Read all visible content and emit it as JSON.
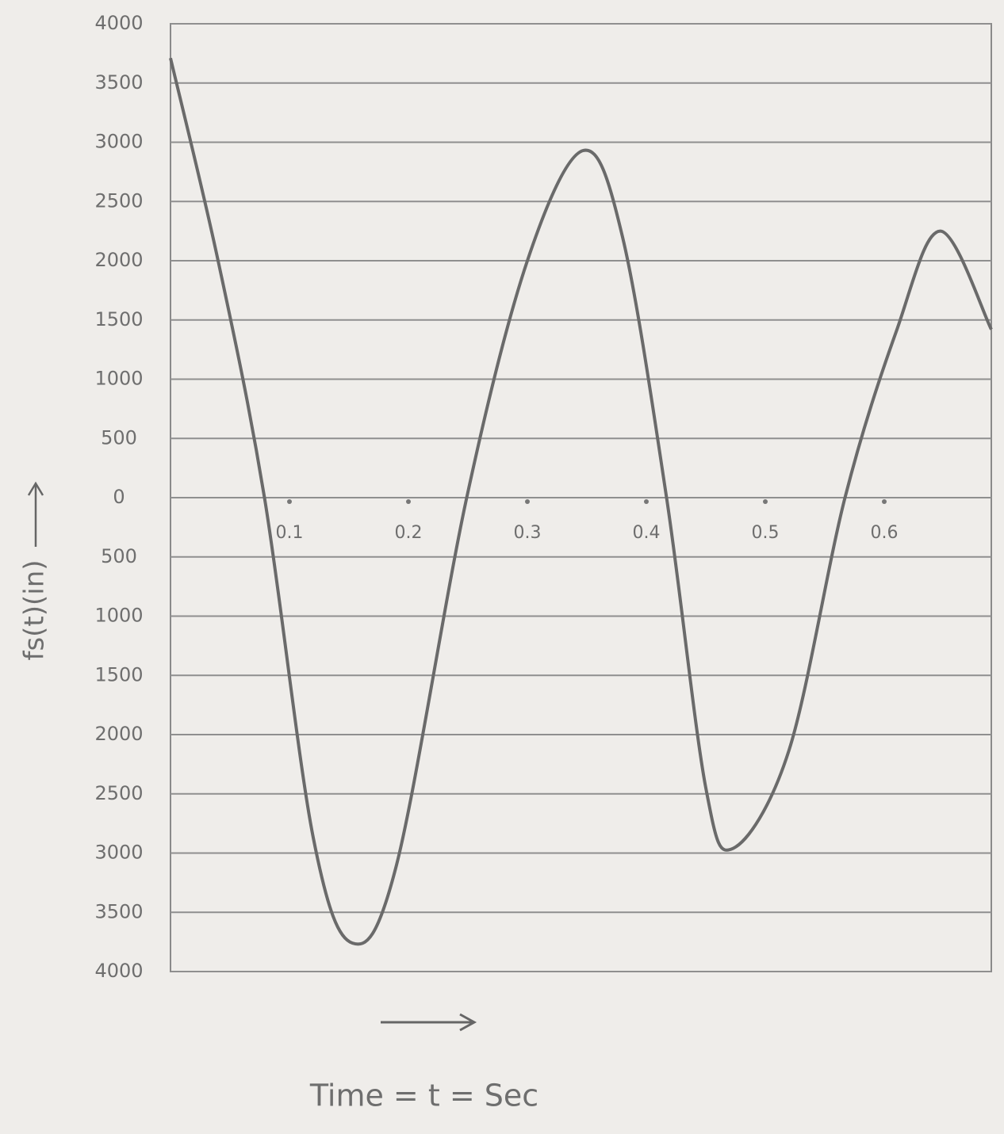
{
  "chart_data": {
    "type": "line",
    "y_label": "fs(t)(in)",
    "x_label": "Time = t = Sec",
    "x": [
      0,
      0.04,
      0.079,
      0.12,
      0.153,
      0.19,
      0.249,
      0.3,
      0.347,
      0.38,
      0.417,
      0.45,
      0.473,
      0.52,
      0.567,
      0.61,
      0.647,
      0.69
    ],
    "series": [
      {
        "color": "#6a6a6a",
        "values": [
          3710,
          2000,
          0,
          -2870,
          -3760,
          -3100,
          0,
          2000,
          2930,
          2200,
          0,
          -2450,
          -2960,
          -2130,
          0,
          1400,
          2250,
          1420
        ]
      }
    ],
    "xlim": [
      0,
      0.69
    ],
    "xticks": [
      0.1,
      0.2,
      0.3,
      0.4,
      0.5,
      0.6
    ],
    "ylim": [
      -4000,
      4000
    ],
    "yticks": [
      {
        "value": -4000,
        "label": "4000"
      },
      {
        "value": -3500,
        "label": "3500"
      },
      {
        "value": -3000,
        "label": "3000"
      },
      {
        "value": -2500,
        "label": "2500"
      },
      {
        "value": -2000,
        "label": "2000"
      },
      {
        "value": -1500,
        "label": "1500"
      },
      {
        "value": -1000,
        "label": "1000"
      },
      {
        "value": -500,
        "label": "500"
      },
      0,
      500,
      1000,
      1500,
      2000,
      2500,
      3000,
      3500,
      4000
    ],
    "grid": true
  }
}
